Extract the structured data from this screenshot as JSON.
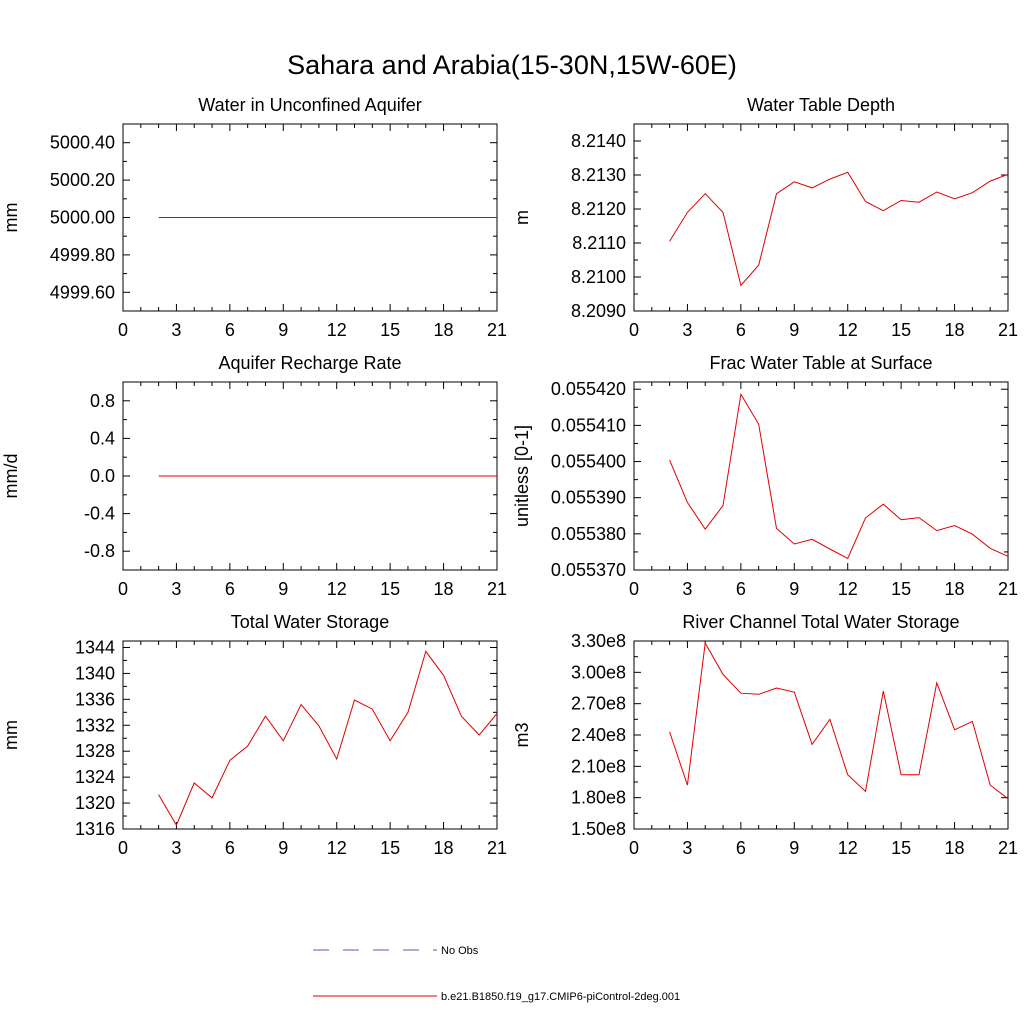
{
  "figure": {
    "title": "Sahara and Arabia(15-30N,15W-60E)",
    "legend": [
      {
        "label": "No Obs",
        "color": "#5a5ab4",
        "dash": true
      },
      {
        "label": "b.e21.B1850.f19_g17.CMIP6-piControl-2deg.001",
        "color": "#e00000",
        "dash": false
      }
    ]
  },
  "chart_data": [
    {
      "type": "line",
      "title": "Water in Unconfined Aquifer",
      "xlabel": "",
      "ylabel": "mm",
      "xlim": [
        0,
        21
      ],
      "ylim": [
        4999.5,
        5000.5
      ],
      "xticks": [
        0,
        3,
        6,
        9,
        12,
        15,
        18,
        21
      ],
      "xtick_labels": [
        "0",
        "3",
        "6",
        "9",
        "12",
        "15",
        "18",
        "21"
      ],
      "yticks": [
        4999.6,
        4999.8,
        5000.0,
        5000.2,
        5000.4
      ],
      "ytick_labels": [
        "4999.60",
        "4999.80",
        "5000.00",
        "5000.20",
        "5000.40"
      ],
      "x": [
        2,
        3,
        4,
        5,
        6,
        7,
        8,
        9,
        10,
        11,
        12,
        13,
        14,
        15,
        16,
        17,
        18,
        19,
        20,
        21
      ],
      "series": [
        {
          "name": "b.e21.B1850.f19_g17.CMIP6-piControl-2deg.001",
          "color": "#e00000",
          "values": [
            5000,
            5000,
            5000,
            5000,
            5000,
            5000,
            5000,
            5000,
            5000,
            5000,
            5000,
            5000,
            5000,
            5000,
            5000,
            5000,
            5000,
            5000,
            5000,
            5000
          ]
        }
      ]
    },
    {
      "type": "line",
      "title": "Water Table Depth",
      "xlabel": "",
      "ylabel": "m",
      "xlim": [
        0,
        21
      ],
      "ylim": [
        8.209,
        8.2145
      ],
      "xticks": [
        0,
        3,
        6,
        9,
        12,
        15,
        18,
        21
      ],
      "xtick_labels": [
        "0",
        "3",
        "6",
        "9",
        "12",
        "15",
        "18",
        "21"
      ],
      "yticks": [
        8.209,
        8.21,
        8.211,
        8.212,
        8.213,
        8.214
      ],
      "ytick_labels": [
        "8.2090",
        "8.2100",
        "8.2110",
        "8.2120",
        "8.2130",
        "8.2140"
      ],
      "x": [
        2,
        3,
        4,
        5,
        6,
        7,
        8,
        9,
        10,
        11,
        12,
        13,
        14,
        15,
        16,
        17,
        18,
        19,
        20,
        21
      ],
      "series": [
        {
          "name": "b.e21.B1850.f19_g17.CMIP6-piControl-2deg.001",
          "color": "#e00000",
          "values": [
            8.21105,
            8.2119,
            8.21245,
            8.2119,
            8.20975,
            8.21035,
            8.21245,
            8.2128,
            8.21262,
            8.21288,
            8.21308,
            8.21222,
            8.21195,
            8.21225,
            8.2122,
            8.2125,
            8.2123,
            8.21248,
            8.21282,
            8.21302
          ]
        }
      ]
    },
    {
      "type": "line",
      "title": "Aquifer Recharge Rate",
      "xlabel": "",
      "ylabel": "mm/d",
      "xlim": [
        0,
        21
      ],
      "ylim": [
        -1.0,
        1.0
      ],
      "xticks": [
        0,
        3,
        6,
        9,
        12,
        15,
        18,
        21
      ],
      "xtick_labels": [
        "0",
        "3",
        "6",
        "9",
        "12",
        "15",
        "18",
        "21"
      ],
      "yticks": [
        -0.8,
        -0.4,
        0.0,
        0.4,
        0.8
      ],
      "ytick_labels": [
        "-0.8",
        "-0.4",
        "0.0",
        "0.4",
        "0.8"
      ],
      "x": [
        2,
        3,
        4,
        5,
        6,
        7,
        8,
        9,
        10,
        11,
        12,
        13,
        14,
        15,
        16,
        17,
        18,
        19,
        20,
        21
      ],
      "series": [
        {
          "name": "b.e21.B1850.f19_g17.CMIP6-piControl-2deg.001",
          "color": "#e00000",
          "values": [
            0,
            0,
            0,
            0,
            0,
            0,
            0,
            0,
            0,
            0,
            0,
            0,
            0,
            0,
            0,
            0,
            0,
            0,
            0,
            0
          ]
        }
      ]
    },
    {
      "type": "line",
      "title": "Frac Water Table at Surface",
      "xlabel": "",
      "ylabel": "unitless [0-1]",
      "xlim": [
        0,
        21
      ],
      "ylim": [
        0.05537,
        0.055422
      ],
      "xticks": [
        0,
        3,
        6,
        9,
        12,
        15,
        18,
        21
      ],
      "xtick_labels": [
        "0",
        "3",
        "6",
        "9",
        "12",
        "15",
        "18",
        "21"
      ],
      "yticks": [
        0.05537,
        0.05538,
        0.05539,
        0.0554,
        0.05541,
        0.05542
      ],
      "ytick_labels": [
        "0.055370",
        "0.055380",
        "0.055390",
        "0.055400",
        "0.055410",
        "0.055420"
      ],
      "x": [
        2,
        3,
        4,
        5,
        6,
        7,
        8,
        9,
        10,
        11,
        12,
        13,
        14,
        15,
        16,
        17,
        18,
        19,
        20,
        21
      ],
      "series": [
        {
          "name": "b.e21.B1850.f19_g17.CMIP6-piControl-2deg.001",
          "color": "#e00000",
          "values": [
            0.0554004,
            0.0553887,
            0.0553813,
            0.0553878,
            0.0554186,
            0.0554103,
            0.0553815,
            0.0553772,
            0.0553785,
            0.0553758,
            0.0553732,
            0.0553844,
            0.0553882,
            0.0553839,
            0.0553845,
            0.0553809,
            0.0553823,
            0.0553799,
            0.055376,
            0.0553738
          ]
        }
      ]
    },
    {
      "type": "line",
      "title": "Total Water Storage",
      "xlabel": "",
      "ylabel": "mm",
      "xlim": [
        0,
        21
      ],
      "ylim": [
        1316,
        1345
      ],
      "xticks": [
        0,
        3,
        6,
        9,
        12,
        15,
        18,
        21
      ],
      "xtick_labels": [
        "0",
        "3",
        "6",
        "9",
        "12",
        "15",
        "18",
        "21"
      ],
      "yticks": [
        1316,
        1320,
        1324,
        1328,
        1332,
        1336,
        1340,
        1344
      ],
      "ytick_labels": [
        "1316",
        "1320",
        "1324",
        "1328",
        "1332",
        "1336",
        "1340",
        "1344"
      ],
      "x": [
        2,
        3,
        4,
        5,
        6,
        7,
        8,
        9,
        10,
        11,
        12,
        13,
        14,
        15,
        16,
        17,
        18,
        19,
        20,
        21
      ],
      "series": [
        {
          "name": "b.e21.B1850.f19_g17.CMIP6-piControl-2deg.001",
          "color": "#e00000",
          "values": [
            1321.3,
            1316.6,
            1323.1,
            1320.8,
            1326.6,
            1328.8,
            1333.4,
            1329.6,
            1335.2,
            1331.9,
            1326.8,
            1335.9,
            1334.5,
            1329.6,
            1334.0,
            1343.4,
            1339.7,
            1333.4,
            1330.5,
            1333.8
          ]
        }
      ]
    },
    {
      "type": "line",
      "title": "River Channel Total Water Storage",
      "xlabel": "",
      "ylabel": "m3",
      "xlim": [
        0,
        21
      ],
      "ylim": [
        150000000,
        330000000
      ],
      "xticks": [
        0,
        3,
        6,
        9,
        12,
        15,
        18,
        21
      ],
      "xtick_labels": [
        "0",
        "3",
        "6",
        "9",
        "12",
        "15",
        "18",
        "21"
      ],
      "yticks": [
        150000000,
        180000000,
        210000000,
        240000000,
        270000000,
        300000000,
        330000000
      ],
      "ytick_labels": [
        "1.50e8",
        "1.80e8",
        "2.10e8",
        "2.40e8",
        "2.70e8",
        "3.00e8",
        "3.30e8"
      ],
      "x": [
        2,
        3,
        4,
        5,
        6,
        7,
        8,
        9,
        10,
        11,
        12,
        13,
        14,
        15,
        16,
        17,
        18,
        19,
        20,
        21
      ],
      "series": [
        {
          "name": "b.e21.B1850.f19_g17.CMIP6-piControl-2deg.001",
          "color": "#e00000",
          "values": [
            243000000,
            192000000,
            328000000,
            298000000,
            280000000,
            279000000,
            285000000,
            281000000,
            231000000,
            255000000,
            202000000,
            186000000,
            282000000,
            202000000,
            202000000,
            290000000,
            245000000,
            253000000,
            192000000,
            179000000
          ]
        }
      ]
    }
  ]
}
